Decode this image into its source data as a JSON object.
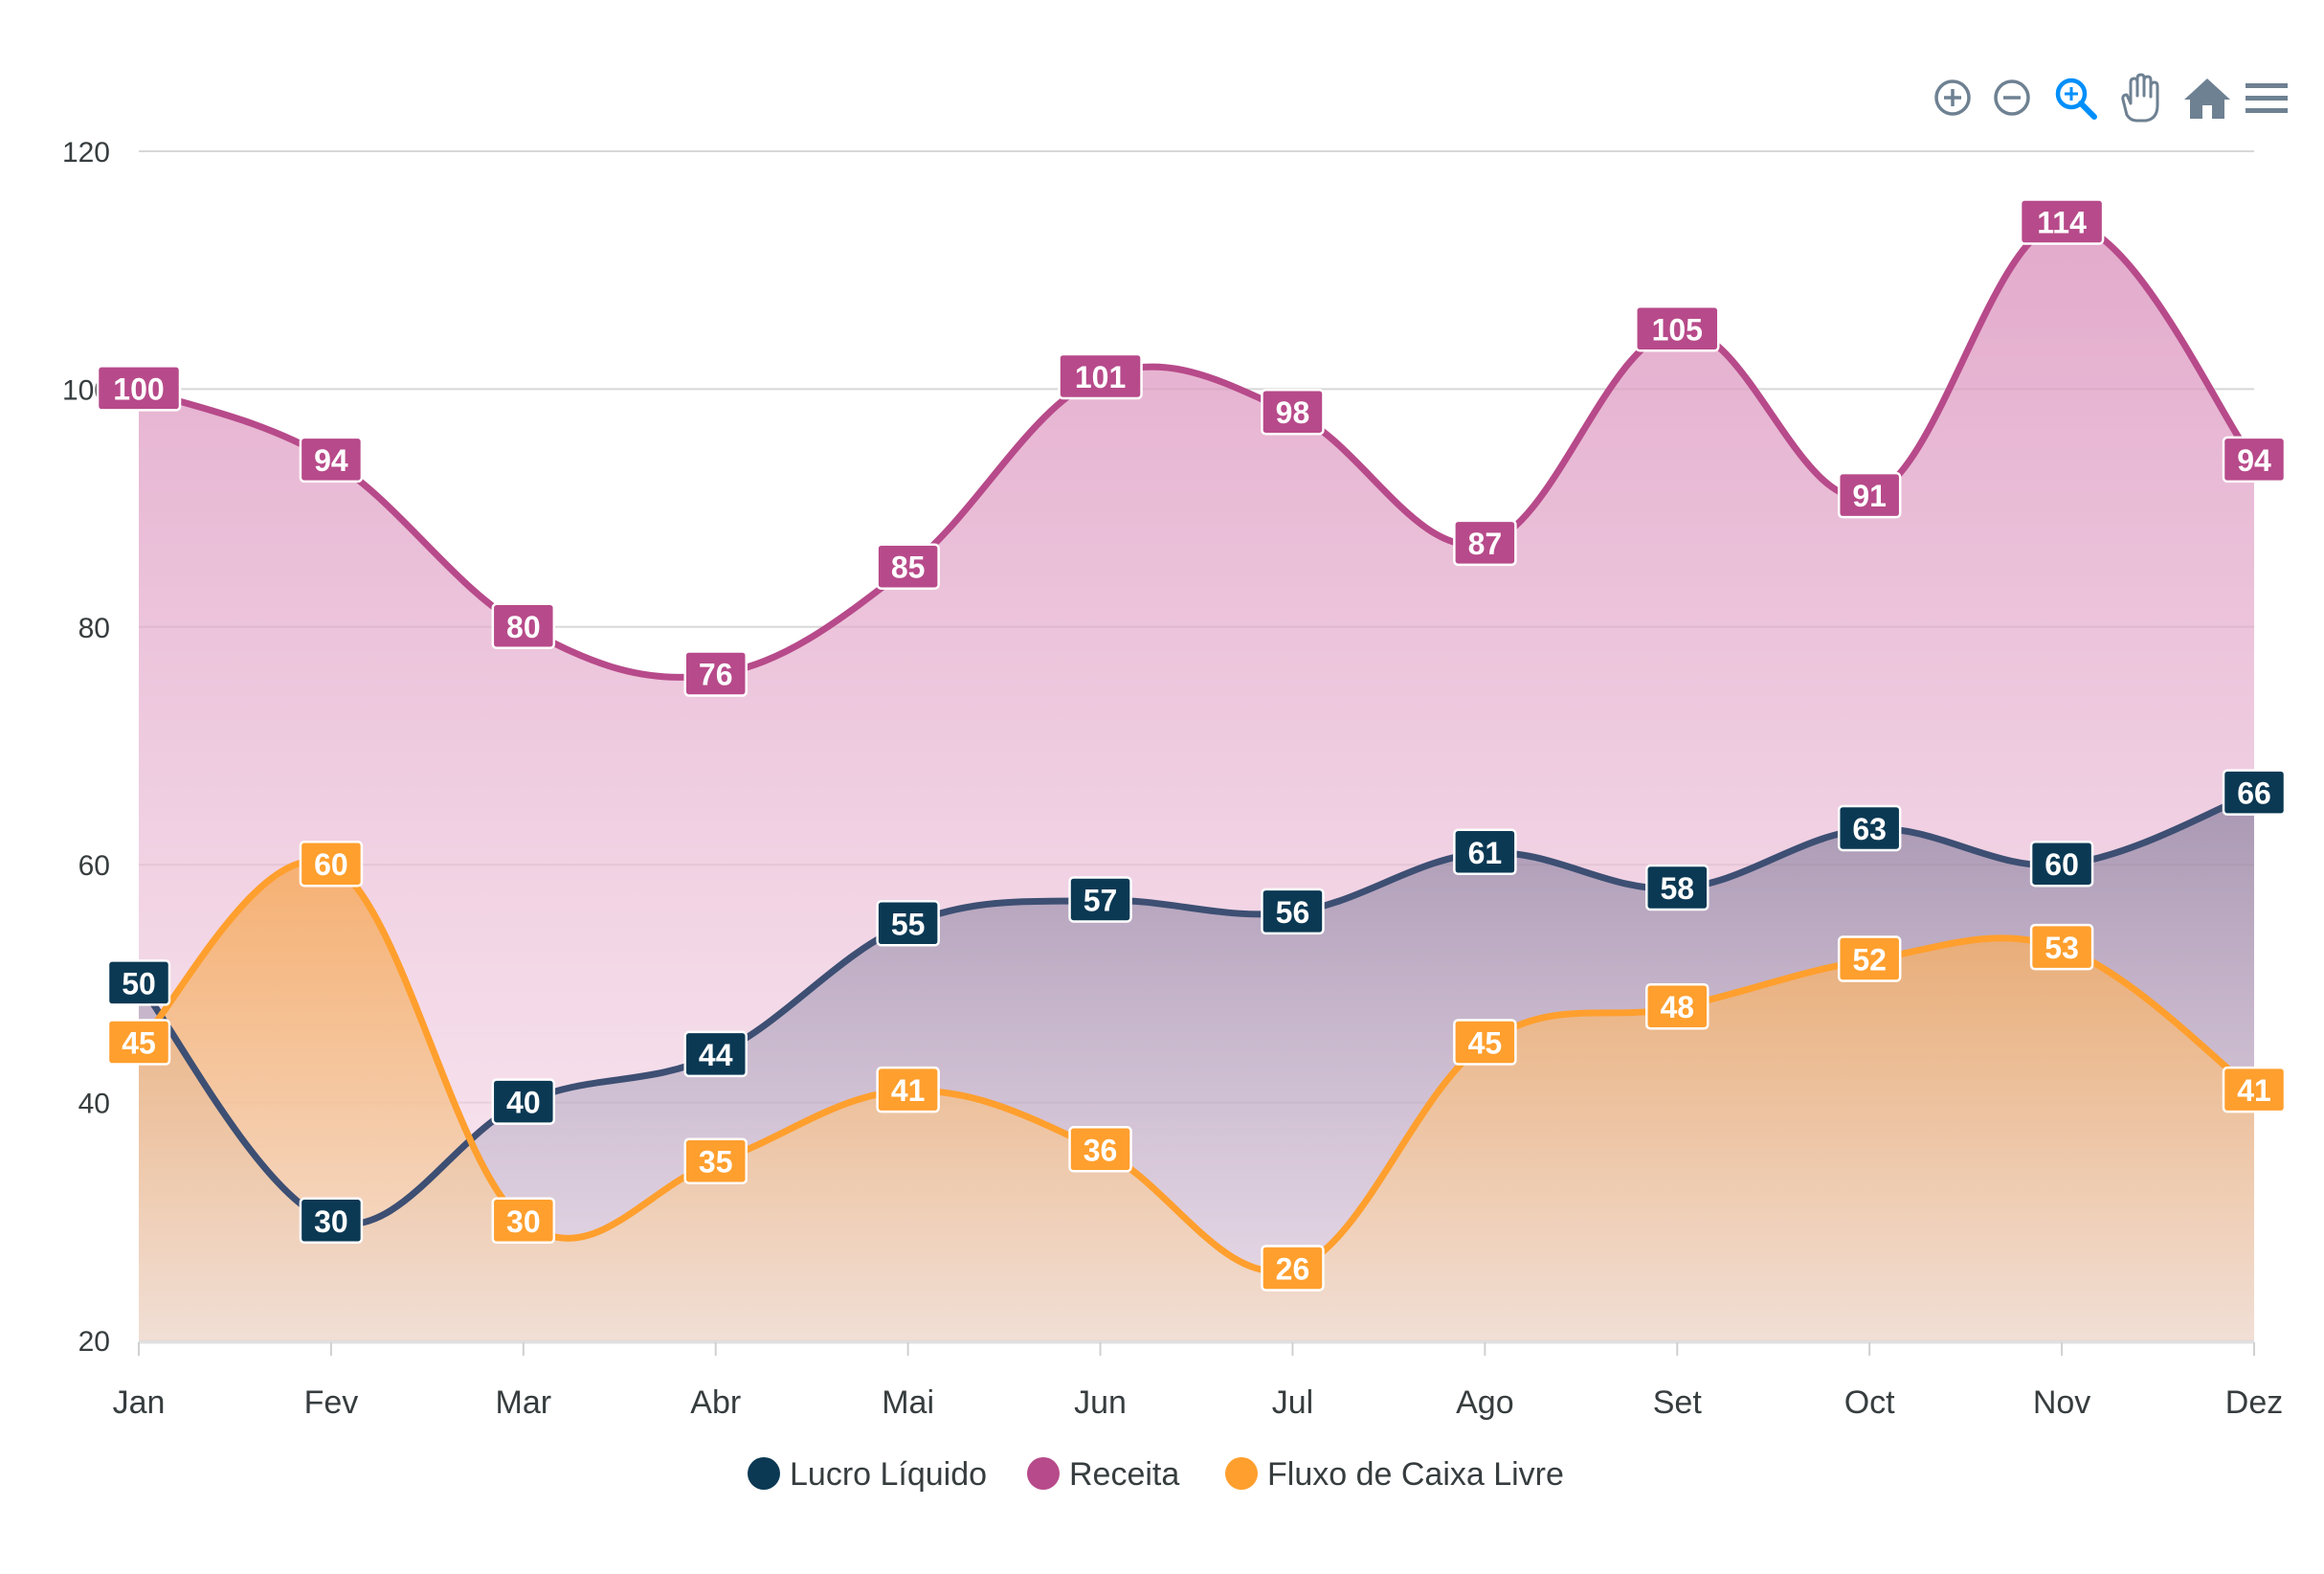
{
  "toolbar": {
    "zoom_in_icon": "zoom-in-icon",
    "zoom_out_icon": "zoom-out-icon",
    "selection_zoom_icon": "magnifier-zoom-icon",
    "pan_icon": "hand-pan-icon",
    "reset_icon": "home-icon",
    "menu_icon": "hamburger-menu-icon",
    "active_color": "#008ffb",
    "idle_color": "#6e8192"
  },
  "chart_data": {
    "type": "area",
    "curve": "smooth",
    "categories": [
      "Jan",
      "Fev",
      "Mar",
      "Abr",
      "Mai",
      "Jun",
      "Jul",
      "Ago",
      "Set",
      "Oct",
      "Nov",
      "Dez"
    ],
    "y_ticks": [
      "20",
      "40",
      "60",
      "80",
      "100",
      "120"
    ],
    "ylim": [
      20,
      120
    ],
    "grid": true,
    "legend_position": "bottom-center",
    "data_labels": true,
    "series": [
      {
        "name": "Lucro Líquido",
        "color": "#0b3954",
        "line_color": "#3d4f73",
        "values": [
          50,
          30,
          40,
          44,
          55,
          57,
          56,
          61,
          58,
          63,
          60,
          66
        ]
      },
      {
        "name": "Receita",
        "color": "#b74a8a",
        "line_color": "#b74a8a",
        "values": [
          100,
          94,
          80,
          76,
          85,
          101,
          98,
          87,
          105,
          91,
          114,
          94
        ]
      },
      {
        "name": "Fluxo de Caixa Livre",
        "color": "#ff9f2e",
        "line_color": "#ff9f2e",
        "values": [
          45,
          60,
          30,
          35,
          41,
          36,
          26,
          45,
          48,
          52,
          53,
          41
        ]
      }
    ]
  }
}
